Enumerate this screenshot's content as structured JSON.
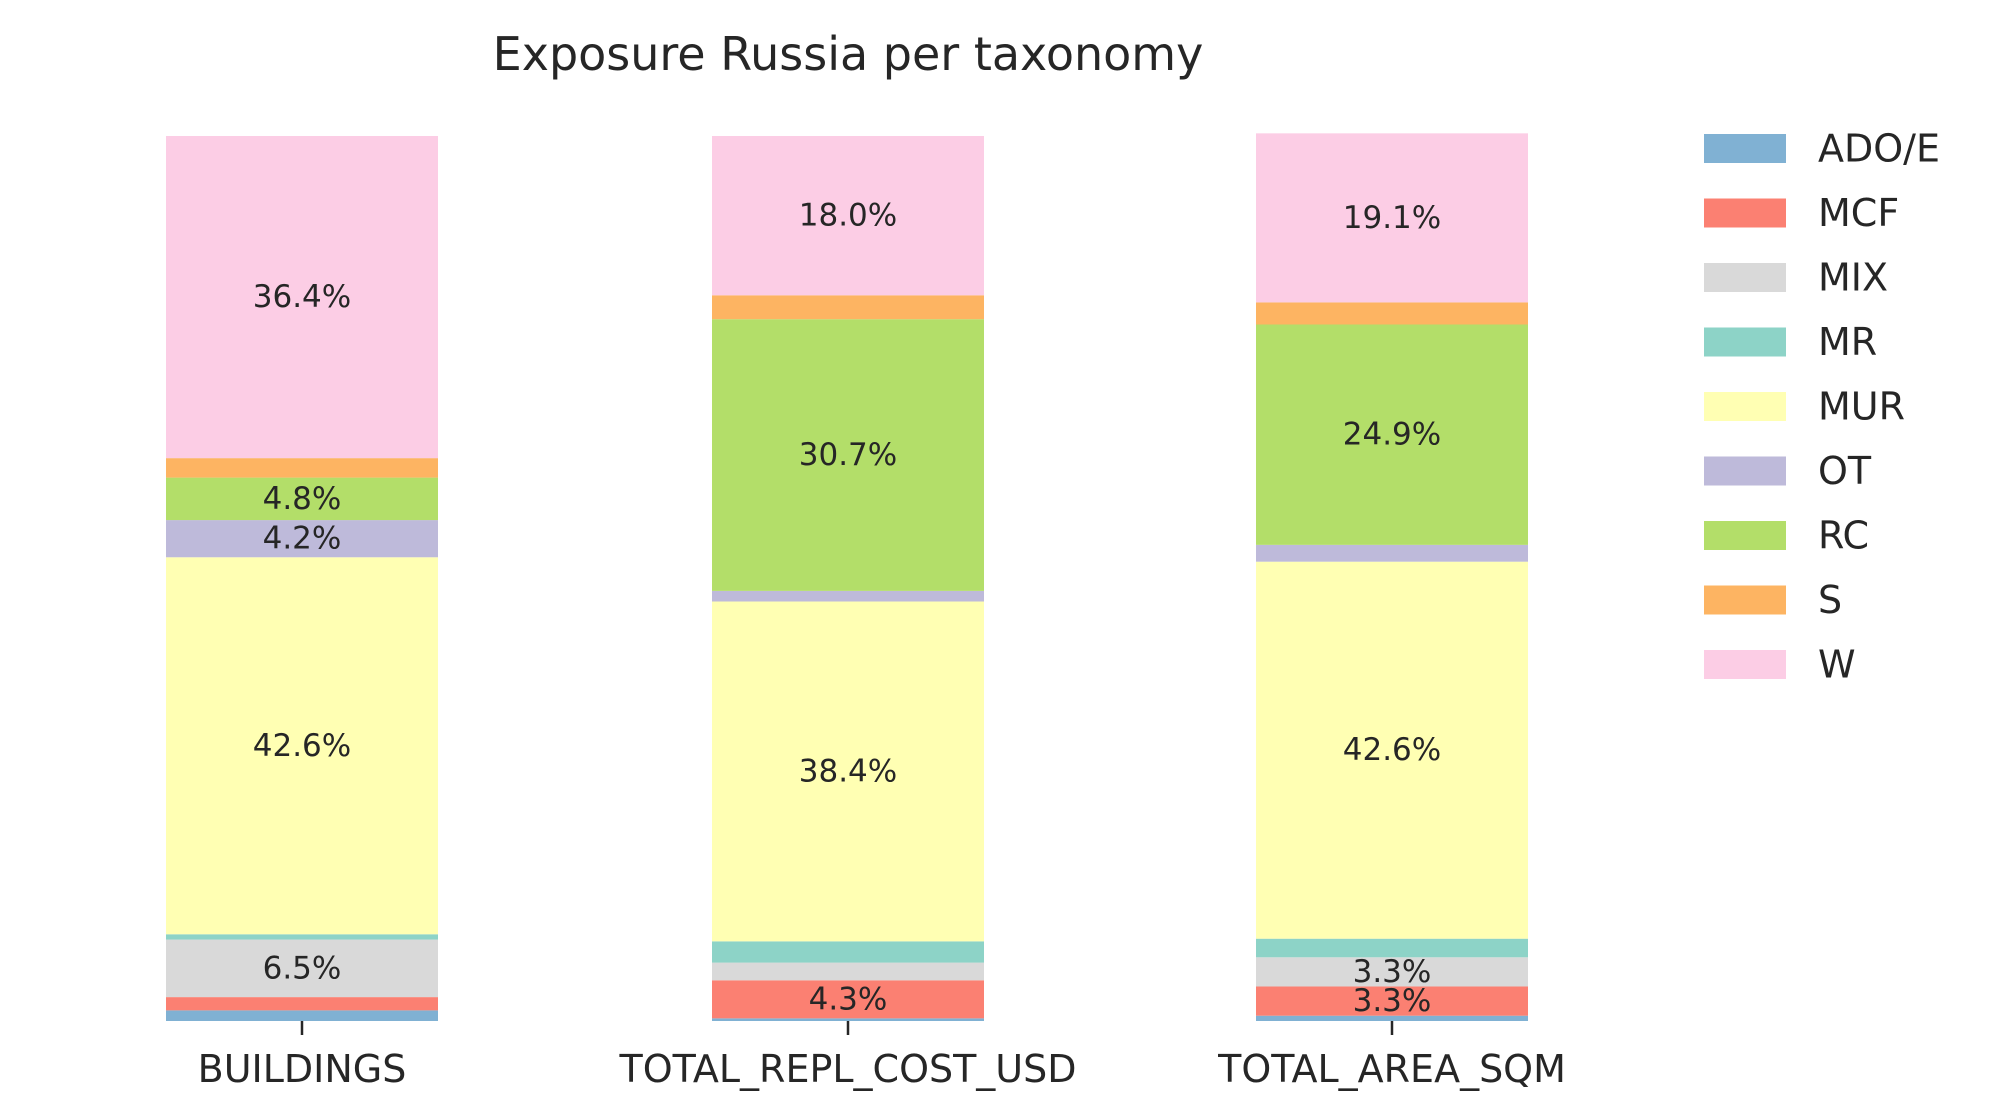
{
  "chart_data": {
    "type": "bar",
    "stacked": true,
    "normalized": true,
    "title": "Exposure Russia per taxonomy",
    "categories": [
      "BUILDINGS",
      "TOTAL_REPL_COST_USD",
      "TOTAL_AREA_SQM"
    ],
    "ylim": [
      0,
      100
    ],
    "grid": false,
    "legend_position": "right",
    "series": [
      {
        "name": "ADO/E",
        "color": "#80b1d3",
        "values": [
          1.2,
          0.3,
          0.6
        ]
      },
      {
        "name": "MCF",
        "color": "#fb8072",
        "values": [
          1.5,
          4.3,
          3.3
        ]
      },
      {
        "name": "MIX",
        "color": "#d9d9d9",
        "values": [
          6.5,
          2.0,
          3.3
        ]
      },
      {
        "name": "MR",
        "color": "#8dd3c7",
        "values": [
          0.6,
          2.4,
          2.1
        ]
      },
      {
        "name": "MUR",
        "color": "#ffffb3",
        "values": [
          42.6,
          38.4,
          42.6
        ]
      },
      {
        "name": "OT",
        "color": "#bebada",
        "values": [
          4.2,
          1.2,
          1.9
        ]
      },
      {
        "name": "RC",
        "color": "#b3de69",
        "values": [
          4.8,
          30.7,
          24.9
        ]
      },
      {
        "name": "S",
        "color": "#fdb462",
        "values": [
          2.2,
          2.7,
          2.5
        ]
      },
      {
        "name": "W",
        "color": "#fccde5",
        "values": [
          36.4,
          18.0,
          19.1
        ]
      }
    ],
    "data_labels": [
      {
        "category": 0,
        "series": "MIX",
        "text": "6.5%"
      },
      {
        "category": 0,
        "series": "MUR",
        "text": "42.6%"
      },
      {
        "category": 0,
        "series": "OT",
        "text": "4.2%"
      },
      {
        "category": 0,
        "series": "RC",
        "text": "4.8%"
      },
      {
        "category": 0,
        "series": "W",
        "text": "36.4%"
      },
      {
        "category": 1,
        "series": "MCF",
        "text": "4.3%"
      },
      {
        "category": 1,
        "series": "MUR",
        "text": "38.4%"
      },
      {
        "category": 1,
        "series": "RC",
        "text": "30.7%"
      },
      {
        "category": 1,
        "series": "W",
        "text": "18.0%"
      },
      {
        "category": 2,
        "series": "MCF",
        "text": "3.3%"
      },
      {
        "category": 2,
        "series": "MIX",
        "text": "3.3%"
      },
      {
        "category": 2,
        "series": "MUR",
        "text": "42.6%"
      },
      {
        "category": 2,
        "series": "RC",
        "text": "24.9%"
      },
      {
        "category": 2,
        "series": "W",
        "text": "19.1%"
      }
    ]
  }
}
